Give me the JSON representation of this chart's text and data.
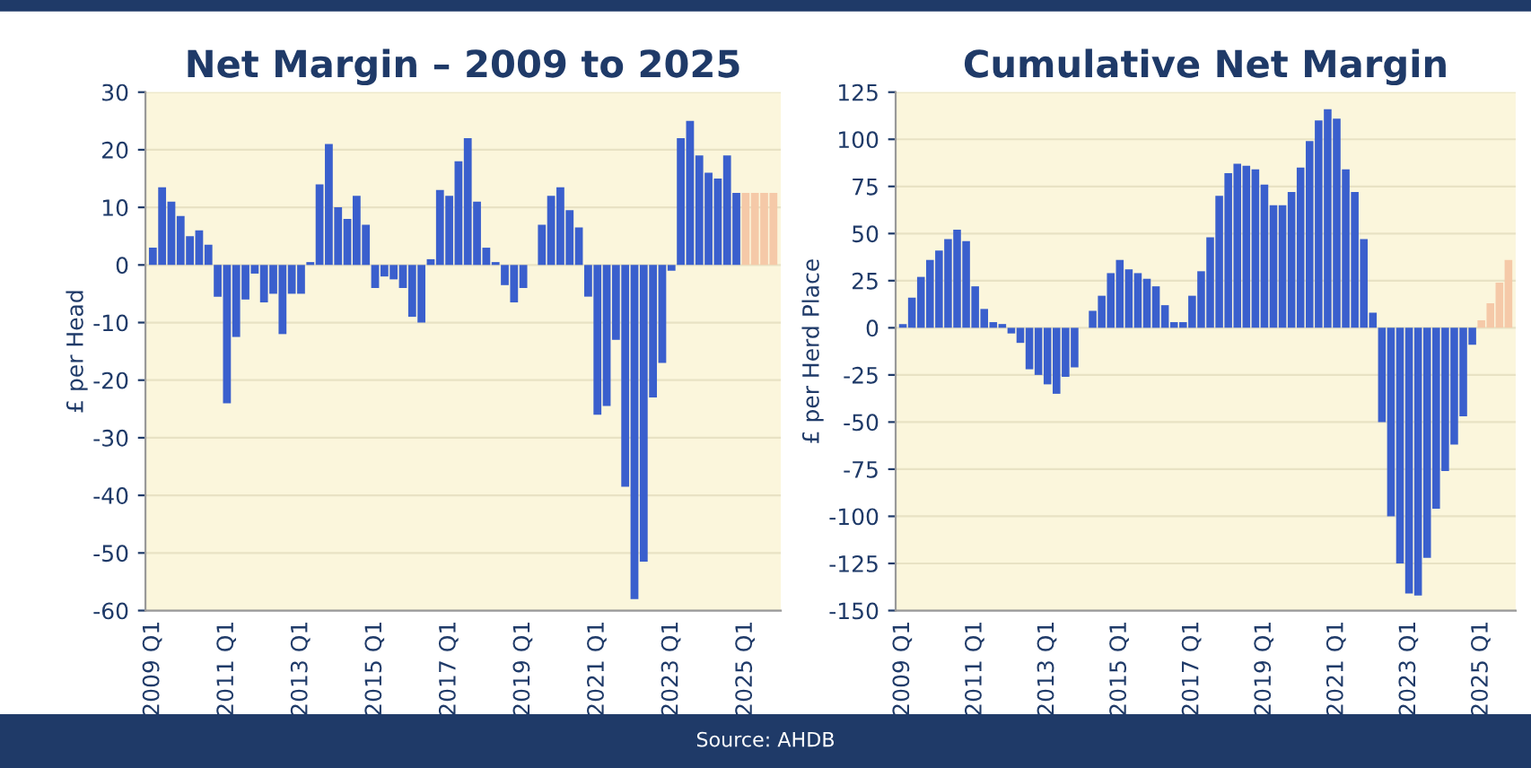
{
  "chart_data": [
    {
      "type": "bar",
      "title": "Net Margin – 2009 to 2025",
      "ylabel": "£ per Head",
      "categories": [
        "2009 Q1",
        null,
        null,
        null,
        null,
        null,
        null,
        null,
        "2011 Q1",
        null,
        null,
        null,
        null,
        null,
        null,
        null,
        "2013 Q1",
        null,
        null,
        null,
        null,
        null,
        null,
        null,
        "2015 Q1",
        null,
        null,
        null,
        null,
        null,
        null,
        null,
        "2017 Q1",
        null,
        null,
        null,
        null,
        null,
        null,
        null,
        "2019 Q1",
        null,
        null,
        null,
        null,
        null,
        null,
        null,
        "2021 Q1",
        null,
        null,
        null,
        null,
        null,
        null,
        null,
        "2023 Q1",
        null,
        null,
        null,
        null,
        null,
        null,
        null,
        "2025 Q1",
        null,
        null,
        null
      ],
      "values": [
        3,
        13.5,
        11,
        8.5,
        5,
        6,
        3.5,
        -5.5,
        -24,
        -12.5,
        -6,
        -1.5,
        -6.5,
        -5,
        -12,
        -5,
        -5,
        0.5,
        14,
        21,
        10,
        8,
        12,
        7,
        -4,
        -2,
        -2.5,
        -4,
        -9,
        -10,
        1,
        13,
        12,
        18,
        22,
        11,
        3,
        0.5,
        -3.5,
        -6.5,
        -4,
        0,
        7,
        12,
        13.5,
        9.5,
        6.5,
        -5.5,
        -26,
        -24.5,
        -13,
        -38.5,
        -58,
        -51.5,
        -23,
        -17,
        -1,
        22,
        25,
        19,
        16,
        15,
        19,
        12.5,
        12.5,
        12.5,
        12.5,
        12.5
      ],
      "colors": [
        "#3a5fcd",
        "#3a5fcd",
        "#3a5fcd",
        "#3a5fcd",
        "#3a5fcd",
        "#3a5fcd",
        "#3a5fcd",
        "#3a5fcd",
        "#3a5fcd",
        "#3a5fcd",
        "#3a5fcd",
        "#3a5fcd",
        "#3a5fcd",
        "#3a5fcd",
        "#3a5fcd",
        "#3a5fcd",
        "#3a5fcd",
        "#3a5fcd",
        "#3a5fcd",
        "#3a5fcd",
        "#3a5fcd",
        "#3a5fcd",
        "#3a5fcd",
        "#3a5fcd",
        "#3a5fcd",
        "#3a5fcd",
        "#3a5fcd",
        "#3a5fcd",
        "#3a5fcd",
        "#3a5fcd",
        "#3a5fcd",
        "#3a5fcd",
        "#3a5fcd",
        "#3a5fcd",
        "#3a5fcd",
        "#3a5fcd",
        "#3a5fcd",
        "#3a5fcd",
        "#3a5fcd",
        "#3a5fcd",
        "#3a5fcd",
        "#3a5fcd",
        "#3a5fcd",
        "#3a5fcd",
        "#3a5fcd",
        "#3a5fcd",
        "#3a5fcd",
        "#3a5fcd",
        "#3a5fcd",
        "#3a5fcd",
        "#3a5fcd",
        "#3a5fcd",
        "#3a5fcd",
        "#3a5fcd",
        "#3a5fcd",
        "#3a5fcd",
        "#3a5fcd",
        "#3a5fcd",
        "#3a5fcd",
        "#3a5fcd",
        "#3a5fcd",
        "#3a5fcd",
        "#3a5fcd",
        "#3a5fcd",
        "#f5c9a8",
        "#f5c9a8",
        "#f5c9a8",
        "#f5c9a8"
      ],
      "ylim": [
        -60,
        30
      ],
      "yticks": [
        -60,
        -50,
        -40,
        -30,
        -20,
        -10,
        0,
        10,
        20,
        30
      ],
      "grid": "y",
      "legend": false
    },
    {
      "type": "bar",
      "title": "Cumulative Net Margin",
      "ylabel": "£ per Herd Place",
      "categories": [
        "2009 Q1",
        null,
        null,
        null,
        null,
        null,
        null,
        null,
        "2011 Q1",
        null,
        null,
        null,
        null,
        null,
        null,
        null,
        "2013 Q1",
        null,
        null,
        null,
        null,
        null,
        null,
        null,
        "2015 Q1",
        null,
        null,
        null,
        null,
        null,
        null,
        null,
        "2017 Q1",
        null,
        null,
        null,
        null,
        null,
        null,
        null,
        "2019 Q1",
        null,
        null,
        null,
        null,
        null,
        null,
        null,
        "2021 Q1",
        null,
        null,
        null,
        null,
        null,
        null,
        null,
        "2023 Q1",
        null,
        null,
        null,
        null,
        null,
        null,
        null,
        "2025 Q1",
        null,
        null,
        null
      ],
      "values": [
        2,
        16,
        27,
        36,
        41,
        47,
        52,
        46,
        22,
        10,
        3,
        2,
        -3,
        -8,
        -22,
        -25,
        -30,
        -35,
        -26,
        -21,
        0,
        9,
        17,
        29,
        36,
        31,
        29,
        26,
        22,
        12,
        3,
        3,
        17,
        30,
        48,
        70,
        82,
        87,
        86,
        84,
        76,
        65,
        65,
        72,
        85,
        99,
        110,
        116,
        111,
        84,
        72,
        47,
        8,
        -50,
        -100,
        -125,
        -141,
        -142,
        -122,
        -96,
        -76,
        -62,
        -47,
        -9,
        4,
        13,
        24,
        36
      ],
      "colors": [
        "#3a5fcd",
        "#3a5fcd",
        "#3a5fcd",
        "#3a5fcd",
        "#3a5fcd",
        "#3a5fcd",
        "#3a5fcd",
        "#3a5fcd",
        "#3a5fcd",
        "#3a5fcd",
        "#3a5fcd",
        "#3a5fcd",
        "#3a5fcd",
        "#3a5fcd",
        "#3a5fcd",
        "#3a5fcd",
        "#3a5fcd",
        "#3a5fcd",
        "#3a5fcd",
        "#3a5fcd",
        "#3a5fcd",
        "#3a5fcd",
        "#3a5fcd",
        "#3a5fcd",
        "#3a5fcd",
        "#3a5fcd",
        "#3a5fcd",
        "#3a5fcd",
        "#3a5fcd",
        "#3a5fcd",
        "#3a5fcd",
        "#3a5fcd",
        "#3a5fcd",
        "#3a5fcd",
        "#3a5fcd",
        "#3a5fcd",
        "#3a5fcd",
        "#3a5fcd",
        "#3a5fcd",
        "#3a5fcd",
        "#3a5fcd",
        "#3a5fcd",
        "#3a5fcd",
        "#3a5fcd",
        "#3a5fcd",
        "#3a5fcd",
        "#3a5fcd",
        "#3a5fcd",
        "#3a5fcd",
        "#3a5fcd",
        "#3a5fcd",
        "#3a5fcd",
        "#3a5fcd",
        "#3a5fcd",
        "#3a5fcd",
        "#3a5fcd",
        "#3a5fcd",
        "#3a5fcd",
        "#3a5fcd",
        "#3a5fcd",
        "#3a5fcd",
        "#3a5fcd",
        "#3a5fcd",
        "#3a5fcd",
        "#f5c9a8",
        "#f5c9a8",
        "#f5c9a8",
        "#f5c9a8"
      ],
      "ylim": [
        -150,
        125
      ],
      "yticks": [
        -150,
        -125,
        -100,
        -75,
        -50,
        -25,
        0,
        25,
        50,
        75,
        100,
        125
      ],
      "grid": "y",
      "legend": false,
      "annotations": [
        "Source: AHDB"
      ]
    }
  ]
}
